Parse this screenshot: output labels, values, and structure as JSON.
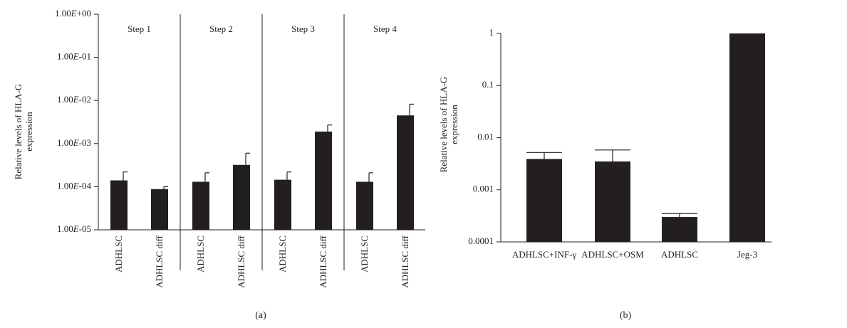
{
  "chart_data": [
    {
      "type": "bar",
      "panel_label": "(a)",
      "ylabel_lines": [
        "Relative levels of HLA-G",
        "expression"
      ],
      "yscale": "log",
      "ylim": [
        1e-05,
        1
      ],
      "y_ticks": [
        {
          "value": 1,
          "label": "1.00E+00"
        },
        {
          "value": 0.1,
          "label": "1.00E-01"
        },
        {
          "value": 0.01,
          "label": "1.00E-02"
        },
        {
          "value": 0.001,
          "label": "1.00E-03"
        },
        {
          "value": 0.0001,
          "label": "1.00E-04"
        },
        {
          "value": 1e-05,
          "label": "1.00E-05"
        }
      ],
      "groups": [
        "Step 1",
        "Step 2",
        "Step 3",
        "Step 4"
      ],
      "categories": [
        "ADHLSC",
        "ADHLSC diff",
        "ADHLSC",
        "ADHLSC diff",
        "ADHLSC",
        "ADHLSC diff",
        "ADHLSC",
        "ADHLSC diff"
      ],
      "values": [
        0.00014,
        8.8e-05,
        0.00013,
        0.00032,
        0.000145,
        0.0019,
        0.00013,
        0.0045
      ],
      "error_upper": [
        0.00022,
        0.0001,
        0.00021,
        0.0006,
        0.00022,
        0.0027,
        0.00021,
        0.0082
      ],
      "bar_color": "#231f20"
    },
    {
      "type": "bar",
      "panel_label": "(b)",
      "ylabel_lines": [
        "Relative levels of HLA-G",
        "expression"
      ],
      "yscale": "log",
      "ylim": [
        0.0001,
        1
      ],
      "y_ticks": [
        {
          "value": 1,
          "label": "1"
        },
        {
          "value": 0.1,
          "label": "0.1"
        },
        {
          "value": 0.01,
          "label": "0.01"
        },
        {
          "value": 0.001,
          "label": "0.001"
        },
        {
          "value": 0.0001,
          "label": "0.0001"
        }
      ],
      "categories": [
        "ADHLSC+INF-γ",
        "ADHLSC+OSM",
        "ADHLSC",
        "Jeg-3"
      ],
      "values": [
        0.0039,
        0.0035,
        0.0003,
        1
      ],
      "error_upper": [
        0.0052,
        0.0058,
        0.00035,
        null
      ],
      "bar_color": "#231f20"
    }
  ]
}
